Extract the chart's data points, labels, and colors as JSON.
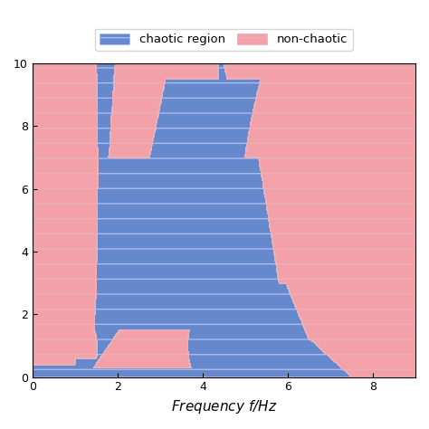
{
  "xlabel": "Frequency $f$/Hz",
  "xlim": [
    0,
    9.0
  ],
  "ylim": [
    0,
    10
  ],
  "xticks": [
    0,
    2,
    4,
    6,
    8
  ],
  "yticks": [
    0,
    2,
    4,
    6,
    8,
    10
  ],
  "chaotic_color": "#6688cc",
  "nonchaotic_color": "#f4a0a8",
  "chaotic_hatch_color": "#aabbee",
  "nonchaotic_hatch_color": "#e8b0b8",
  "figsize": [
    4.74,
    4.74
  ],
  "dpi": 100,
  "freq_points": 700,
  "amp_points": 600
}
